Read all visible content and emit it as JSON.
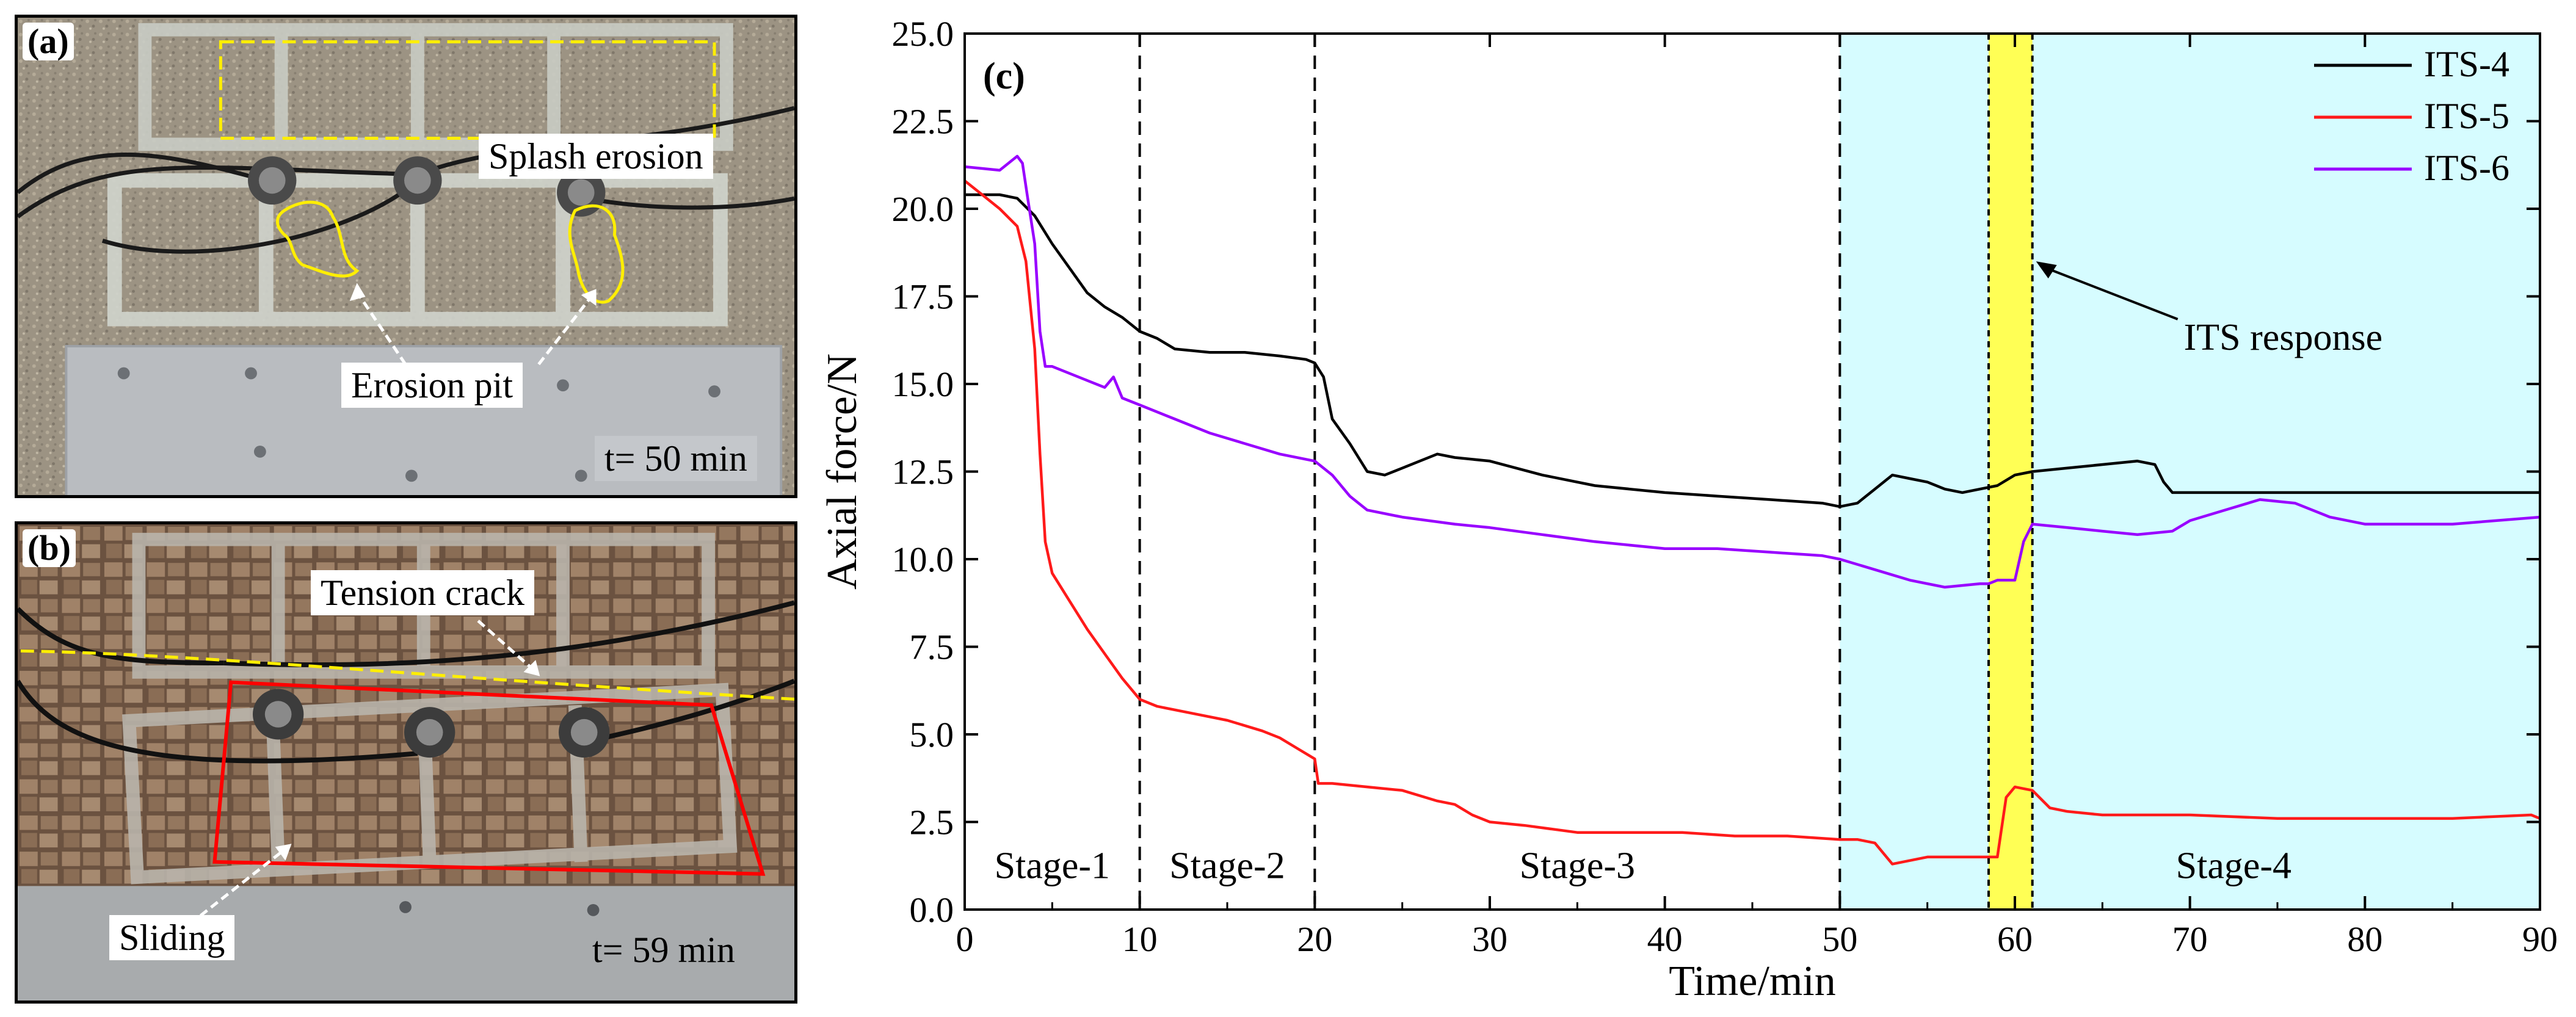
{
  "colors": {
    "its4": "#000000",
    "its5": "#ff1a1a",
    "its6": "#9900ff",
    "stage4_shade": "#d6fcff",
    "response_band": "#ffff55",
    "annotation_yellow": "#ffee00",
    "annotation_red": "#ff0000"
  },
  "panel_a": {
    "label": "(a)",
    "callouts": {
      "splash": "Splash erosion",
      "pit": "Erosion pit",
      "time": "t= 50 min"
    }
  },
  "panel_b": {
    "label": "(b)",
    "callouts": {
      "crack": "Tension crack",
      "sliding": "Sliding",
      "time": "t= 59 min"
    }
  },
  "chart_data": {
    "type": "line",
    "panel_label": "(c)",
    "xlabel": "Time/min",
    "ylabel": "Axial force/N",
    "xlim": [
      0,
      90
    ],
    "ylim": [
      0,
      25
    ],
    "xticks": [
      0,
      10,
      20,
      30,
      40,
      50,
      60,
      70,
      80,
      90
    ],
    "yticks": [
      "0.0",
      "2.5",
      "5.0",
      "7.5",
      "10.0",
      "12.5",
      "15.0",
      "17.5",
      "20.0",
      "22.5",
      "25.0"
    ],
    "legend_position": "top-right",
    "stage_dividers": [
      10,
      20,
      50
    ],
    "stages": [
      {
        "label": "Stage-1",
        "x": 5
      },
      {
        "label": "Stage-2",
        "x": 15
      },
      {
        "label": "Stage-3",
        "x": 35
      },
      {
        "label": "Stage-4",
        "x": 72.5
      }
    ],
    "shaded_region": [
      50,
      90
    ],
    "response_band": [
      58.5,
      61
    ],
    "annotation": {
      "text": "ITS response",
      "point": [
        61,
        18.5
      ],
      "text_at": [
        70,
        16.5
      ]
    },
    "series": [
      {
        "name": "ITS-4",
        "x": [
          0,
          2,
          3,
          4,
          5,
          6,
          7,
          8,
          9,
          10,
          11,
          12,
          14,
          16,
          18,
          19.5,
          20,
          20.5,
          21,
          22,
          23,
          24,
          25,
          26,
          27,
          28,
          30,
          33,
          36,
          40,
          43,
          46,
          49,
          50,
          51,
          52,
          53,
          54,
          55,
          56,
          57,
          58,
          59,
          60,
          61,
          63,
          65,
          67,
          68,
          68.5,
          69,
          70,
          72,
          75,
          80,
          85,
          90
        ],
        "y": [
          20.4,
          20.4,
          20.3,
          19.8,
          19.0,
          18.3,
          17.6,
          17.2,
          16.9,
          16.5,
          16.3,
          16.0,
          15.9,
          15.9,
          15.8,
          15.7,
          15.6,
          15.2,
          14.0,
          13.3,
          12.5,
          12.4,
          12.6,
          12.8,
          13.0,
          12.9,
          12.8,
          12.4,
          12.1,
          11.9,
          11.8,
          11.7,
          11.6,
          11.5,
          11.6,
          12.0,
          12.4,
          12.3,
          12.2,
          12.0,
          11.9,
          12.0,
          12.1,
          12.4,
          12.5,
          12.6,
          12.7,
          12.8,
          12.7,
          12.2,
          11.9,
          11.9,
          11.9,
          11.9,
          11.9,
          11.9,
          11.9
        ]
      },
      {
        "name": "ITS-5",
        "x": [
          0,
          1,
          2,
          3,
          3.5,
          4,
          4.3,
          4.6,
          5,
          6,
          7,
          8,
          9,
          10,
          11,
          13,
          15,
          17,
          18,
          19,
          20,
          20.2,
          21,
          23,
          25,
          27,
          28,
          29,
          30,
          32,
          35,
          38,
          41,
          44,
          47,
          50,
          51,
          52,
          52.5,
          53,
          55,
          57,
          58,
          58.5,
          59,
          59.5,
          60,
          61,
          62,
          63,
          65,
          70,
          75,
          80,
          85,
          89.5,
          90
        ],
        "y": [
          20.8,
          20.4,
          20.0,
          19.5,
          18.5,
          16.0,
          13.0,
          10.5,
          9.6,
          8.8,
          8.0,
          7.3,
          6.6,
          6.0,
          5.8,
          5.6,
          5.4,
          5.1,
          4.9,
          4.6,
          4.3,
          3.6,
          3.6,
          3.5,
          3.4,
          3.1,
          3.0,
          2.7,
          2.5,
          2.4,
          2.2,
          2.2,
          2.2,
          2.1,
          2.1,
          2.0,
          2.0,
          1.9,
          1.6,
          1.3,
          1.5,
          1.5,
          1.5,
          1.5,
          1.5,
          3.2,
          3.5,
          3.4,
          2.9,
          2.8,
          2.7,
          2.7,
          2.6,
          2.6,
          2.6,
          2.7,
          2.6
        ]
      },
      {
        "name": "ITS-6",
        "x": [
          0,
          2,
          3,
          3.3,
          3.6,
          4,
          4.3,
          4.6,
          5,
          6,
          7,
          8,
          8.5,
          9,
          10,
          12,
          14,
          16,
          18,
          20,
          21,
          22,
          23,
          25,
          28,
          30,
          33,
          36,
          40,
          43,
          46,
          49,
          50,
          52,
          54,
          56,
          58,
          58.5,
          59,
          60,
          60.5,
          61,
          63,
          65,
          67,
          69,
          70,
          72,
          74,
          76,
          78,
          80,
          82,
          85,
          90
        ],
        "y": [
          21.2,
          21.1,
          21.5,
          21.3,
          20.3,
          19.0,
          16.5,
          15.5,
          15.5,
          15.3,
          15.1,
          14.9,
          15.2,
          14.6,
          14.4,
          14.0,
          13.6,
          13.3,
          13.0,
          12.8,
          12.4,
          11.8,
          11.4,
          11.2,
          11.0,
          10.9,
          10.7,
          10.5,
          10.3,
          10.3,
          10.2,
          10.1,
          10.0,
          9.7,
          9.4,
          9.2,
          9.3,
          9.3,
          9.4,
          9.4,
          10.5,
          11.0,
          10.9,
          10.8,
          10.7,
          10.8,
          11.1,
          11.4,
          11.7,
          11.6,
          11.2,
          11.0,
          11.0,
          11.0,
          11.2
        ]
      }
    ]
  }
}
